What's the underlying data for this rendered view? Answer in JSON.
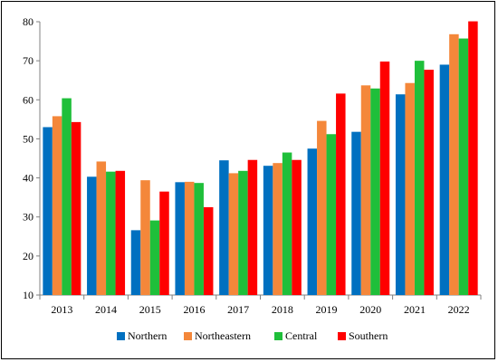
{
  "chart_data": {
    "type": "bar",
    "title": "",
    "xlabel": "",
    "ylabel": "",
    "ylim": [
      10,
      80
    ],
    "yticks": [
      10,
      20,
      30,
      40,
      50,
      60,
      70,
      80
    ],
    "grid": false,
    "legend_position": "bottom",
    "categories": [
      "2013",
      "2014",
      "2015",
      "2016",
      "2017",
      "2018",
      "2019",
      "2020",
      "2021",
      "2022"
    ],
    "series": [
      {
        "name": "Northern",
        "color": "#0070c0",
        "values": [
          53.0,
          40.3,
          26.6,
          38.9,
          44.5,
          43.1,
          47.5,
          51.8,
          61.4,
          69.0
        ]
      },
      {
        "name": "Northeastern",
        "color": "#f4873a",
        "values": [
          55.8,
          44.2,
          39.4,
          39.0,
          41.2,
          43.8,
          54.6,
          63.7,
          64.3,
          76.8
        ]
      },
      {
        "name": "Central",
        "color": "#1fbf3a",
        "values": [
          60.4,
          41.6,
          29.1,
          38.7,
          41.8,
          46.5,
          51.2,
          62.9,
          70.0,
          75.7
        ]
      },
      {
        "name": "Southern",
        "color": "#ff0000",
        "values": [
          54.3,
          41.8,
          36.5,
          32.5,
          44.6,
          44.6,
          61.6,
          69.8,
          67.7,
          80.1
        ]
      }
    ]
  }
}
